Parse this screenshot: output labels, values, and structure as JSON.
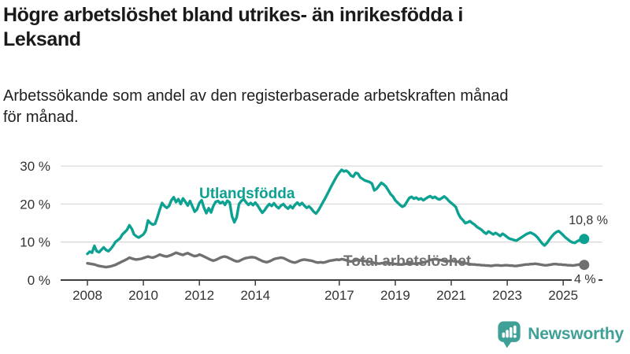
{
  "header": {
    "title": "Högre arbetslöshet bland utrikes- än inrikesfödda i\nLeksand",
    "subtitle": "Arbetssökande som andel av den registerbaserade arbetskraften månad\nför månad."
  },
  "chart_data": {
    "type": "line",
    "x_unit": "month",
    "x_start": "2008-01",
    "x_end": "2025-10",
    "ylim": [
      0,
      32
    ],
    "grid": true,
    "legend_position": "inline-labels",
    "yticks": [
      {
        "value": 0,
        "label": "0 %"
      },
      {
        "value": 10,
        "label": "10 %"
      },
      {
        "value": 20,
        "label": "20 %"
      },
      {
        "value": 30,
        "label": "30 %"
      }
    ],
    "xticks": [
      {
        "year": 2008,
        "label": "2008"
      },
      {
        "year": 2010,
        "label": "2010"
      },
      {
        "year": 2012,
        "label": "2012"
      },
      {
        "year": 2014,
        "label": "2014"
      },
      {
        "year": 2017,
        "label": "2017"
      },
      {
        "year": 2019,
        "label": "2019"
      },
      {
        "year": 2021,
        "label": "2021"
      },
      {
        "year": 2023,
        "label": "2023"
      },
      {
        "year": 2025,
        "label": "2025"
      }
    ],
    "series": [
      {
        "name": "Utlandsfödda",
        "color": "#0CA191",
        "end_label": "10,8 %",
        "end_value": 10.8,
        "values": [
          6.9,
          7.5,
          7.2,
          9.0,
          7.6,
          7.3,
          8.0,
          8.6,
          7.9,
          7.6,
          8.2,
          9.0,
          10.0,
          10.5,
          11.0,
          12.0,
          12.6,
          13.2,
          14.4,
          13.5,
          12.0,
          11.5,
          11.2,
          11.6,
          12.0,
          13.0,
          15.7,
          15.0,
          14.6,
          14.8,
          16.5,
          18.5,
          20.3,
          19.5,
          19.0,
          19.5,
          21.0,
          21.8,
          20.5,
          21.3,
          20.0,
          21.5,
          20.6,
          19.6,
          20.8,
          19.4,
          18.0,
          18.6,
          20.3,
          21.0,
          19.0,
          17.6,
          18.9,
          17.8,
          19.5,
          20.6,
          20.8,
          20.2,
          20.6,
          19.8,
          20.9,
          20.4,
          16.8,
          15.2,
          16.5,
          20.0,
          20.8,
          21.3,
          20.5,
          19.8,
          20.3,
          19.7,
          20.4,
          19.6,
          18.6,
          17.7,
          18.4,
          19.3,
          20.0,
          19.5,
          20.2,
          19.4,
          18.9,
          19.6,
          20.0,
          19.3,
          18.8,
          19.5,
          18.9,
          19.8,
          20.4,
          19.7,
          20.3,
          19.6,
          19.0,
          19.4,
          18.8,
          18.0,
          17.5,
          18.3,
          19.4,
          20.5,
          21.6,
          22.8,
          24.0,
          25.2,
          26.3,
          27.4,
          28.3,
          29.0,
          28.6,
          28.8,
          28.3,
          27.5,
          27.2,
          28.2,
          28.0,
          27.0,
          26.6,
          26.2,
          26.0,
          25.8,
          25.4,
          23.6,
          24.0,
          24.8,
          25.6,
          25.2,
          24.6,
          23.6,
          22.6,
          22.0,
          21.0,
          20.4,
          19.8,
          19.3,
          19.6,
          20.6,
          21.6,
          21.9,
          21.4,
          21.7,
          21.2,
          21.5,
          21.0,
          21.4,
          21.8,
          22.1,
          21.6,
          21.9,
          21.4,
          21.2,
          21.6,
          22.0,
          21.5,
          20.8,
          20.3,
          19.8,
          19.2,
          17.5,
          16.4,
          15.8,
          15.0,
          15.2,
          15.5,
          15.0,
          14.6,
          14.0,
          13.6,
          13.2,
          12.6,
          12.2,
          12.8,
          12.4,
          12.0,
          12.4,
          12.0,
          11.6,
          12.2,
          11.8,
          11.3,
          10.9,
          10.7,
          10.5,
          10.4,
          10.8,
          11.2,
          11.6,
          12.0,
          12.3,
          12.5,
          12.2,
          11.8,
          11.2,
          10.4,
          9.6,
          9.1,
          9.7,
          10.6,
          11.4,
          12.1,
          12.6,
          12.9,
          12.4,
          11.8,
          11.2,
          10.7,
          10.2,
          9.9,
          9.8,
          10.2,
          10.5,
          10.4,
          10.8
        ]
      },
      {
        "name": "Total arbetslöshet",
        "color": "#707070",
        "end_label": "4 %",
        "end_value": 4,
        "values": [
          4.4,
          4.3,
          4.2,
          4.1,
          3.9,
          3.7,
          3.6,
          3.5,
          3.4,
          3.5,
          3.6,
          3.8,
          4.0,
          4.3,
          4.6,
          4.9,
          5.2,
          5.5,
          5.9,
          5.7,
          5.5,
          5.4,
          5.5,
          5.6,
          5.8,
          6.0,
          6.2,
          6.0,
          5.9,
          6.1,
          6.4,
          6.7,
          6.5,
          6.3,
          6.2,
          6.4,
          6.6,
          6.9,
          7.2,
          7.0,
          6.8,
          6.6,
          6.9,
          7.1,
          6.8,
          6.5,
          6.3,
          6.4,
          6.7,
          6.5,
          6.2,
          5.9,
          5.6,
          5.3,
          5.1,
          5.3,
          5.6,
          5.9,
          6.1,
          6.2,
          6.0,
          5.7,
          5.4,
          5.1,
          4.9,
          5.0,
          5.3,
          5.6,
          5.8,
          5.9,
          6.0,
          6.0,
          5.9,
          5.6,
          5.3,
          5.0,
          4.8,
          4.7,
          4.9,
          5.2,
          5.5,
          5.7,
          5.8,
          5.9,
          5.8,
          5.5,
          5.2,
          4.9,
          4.7,
          4.6,
          4.8,
          5.1,
          5.3,
          5.4,
          5.3,
          5.2,
          5.1,
          4.9,
          4.7,
          4.6,
          4.7,
          4.6,
          4.7,
          4.9,
          5.1,
          5.2,
          5.3,
          5.4,
          5.3,
          5.5,
          5.4,
          5.2,
          5.0,
          4.9,
          5.0,
          5.2,
          5.3,
          5.2,
          5.1,
          5.0,
          4.9,
          4.8,
          4.7,
          4.5,
          4.4,
          4.3,
          4.4,
          4.5,
          4.6,
          4.5,
          4.4,
          4.3,
          4.2,
          4.2,
          4.1,
          4.1,
          4.2,
          4.3,
          4.4,
          4.4,
          4.3,
          4.3,
          4.4,
          4.5,
          4.6,
          4.8,
          5.0,
          5.3,
          5.4,
          5.5,
          5.4,
          5.3,
          5.2,
          5.1,
          5.0,
          5.0,
          5.1,
          5.0,
          4.9,
          4.8,
          4.6,
          4.5,
          4.4,
          4.3,
          4.2,
          4.1,
          4.1,
          4.0,
          4.0,
          3.9,
          3.9,
          3.8,
          3.8,
          3.7,
          3.8,
          3.9,
          3.9,
          3.8,
          3.8,
          3.9,
          3.9,
          3.8,
          3.8,
          3.7,
          3.7,
          3.8,
          3.9,
          4.0,
          4.1,
          4.1,
          4.2,
          4.2,
          4.3,
          4.2,
          4.1,
          4.0,
          3.9,
          3.9,
          4.0,
          4.1,
          4.2,
          4.2,
          4.1,
          4.1,
          4.0,
          4.0,
          3.9,
          3.9,
          3.8,
          3.9,
          4.0,
          4.1,
          4.1,
          4.0
        ]
      }
    ]
  },
  "branding": {
    "name": "Newsworthy",
    "color": "#3EA097",
    "icon": "newsworthy-speech-bubble-chart-icon"
  }
}
